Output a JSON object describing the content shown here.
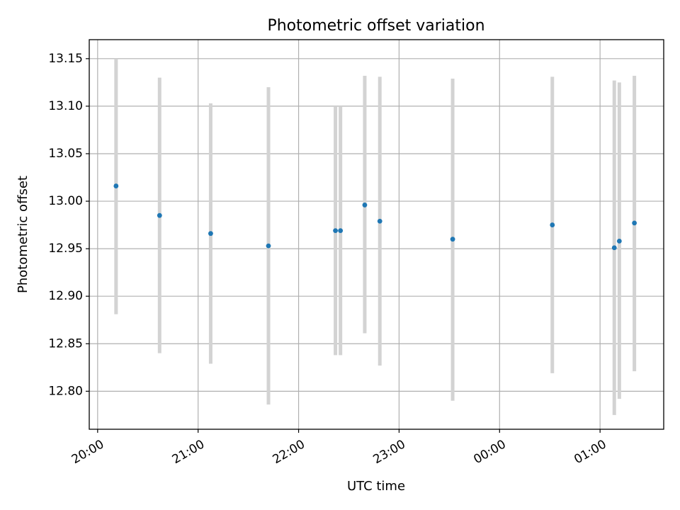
{
  "chart_data": {
    "type": "scatter",
    "title": "Photometric offset variation",
    "xlabel": "UTC time",
    "ylabel": "Photometric offset",
    "x_axis": {
      "kind": "time",
      "range": [
        "2023-01-01T19:55:00",
        "2023-01-02T01:38:00"
      ],
      "ticks": [
        {
          "value": "2023-01-01T20:00:00",
          "label": "20:00"
        },
        {
          "value": "2023-01-01T21:00:00",
          "label": "21:00"
        },
        {
          "value": "2023-01-01T22:00:00",
          "label": "22:00"
        },
        {
          "value": "2023-01-01T23:00:00",
          "label": "23:00"
        },
        {
          "value": "2023-01-02T00:00:00",
          "label": "00:00"
        },
        {
          "value": "2023-01-02T01:00:00",
          "label": "01:00"
        }
      ]
    },
    "y_axis": {
      "range": [
        12.76,
        13.17
      ],
      "ticks": [
        12.8,
        12.85,
        12.9,
        12.95,
        13.0,
        13.05,
        13.1,
        13.15
      ],
      "tick_labels": [
        "12.80",
        "12.85",
        "12.90",
        "12.95",
        "13.00",
        "13.05",
        "13.10",
        "13.15"
      ]
    },
    "grid": true,
    "marker_color": "#1f77b4",
    "errorbar_color": "#d3d3d3",
    "points": [
      {
        "x": "2023-01-01T20:11:00",
        "y": 13.016,
        "ylow": 12.881,
        "yhigh": 13.15
      },
      {
        "x": "2023-01-01T20:37:00",
        "y": 12.985,
        "ylow": 12.84,
        "yhigh": 13.13
      },
      {
        "x": "2023-01-01T21:07:30",
        "y": 12.966,
        "ylow": 12.829,
        "yhigh": 13.103
      },
      {
        "x": "2023-01-01T21:42:00",
        "y": 12.953,
        "ylow": 12.786,
        "yhigh": 13.12
      },
      {
        "x": "2023-01-01T22:22:00",
        "y": 12.969,
        "ylow": 12.838,
        "yhigh": 13.1
      },
      {
        "x": "2023-01-01T22:25:00",
        "y": 12.969,
        "ylow": 12.838,
        "yhigh": 13.1
      },
      {
        "x": "2023-01-01T22:39:30",
        "y": 12.996,
        "ylow": 12.861,
        "yhigh": 13.132
      },
      {
        "x": "2023-01-01T22:48:30",
        "y": 12.979,
        "ylow": 12.827,
        "yhigh": 13.131
      },
      {
        "x": "2023-01-01T23:32:00",
        "y": 12.96,
        "ylow": 12.79,
        "yhigh": 13.129
      },
      {
        "x": "2023-01-02T00:31:30",
        "y": 12.975,
        "ylow": 12.819,
        "yhigh": 13.131
      },
      {
        "x": "2023-01-02T01:08:30",
        "y": 12.951,
        "ylow": 12.775,
        "yhigh": 13.127
      },
      {
        "x": "2023-01-02T01:11:30",
        "y": 12.958,
        "ylow": 12.792,
        "yhigh": 13.125
      },
      {
        "x": "2023-01-02T01:20:30",
        "y": 12.977,
        "ylow": 12.821,
        "yhigh": 13.132
      }
    ]
  }
}
